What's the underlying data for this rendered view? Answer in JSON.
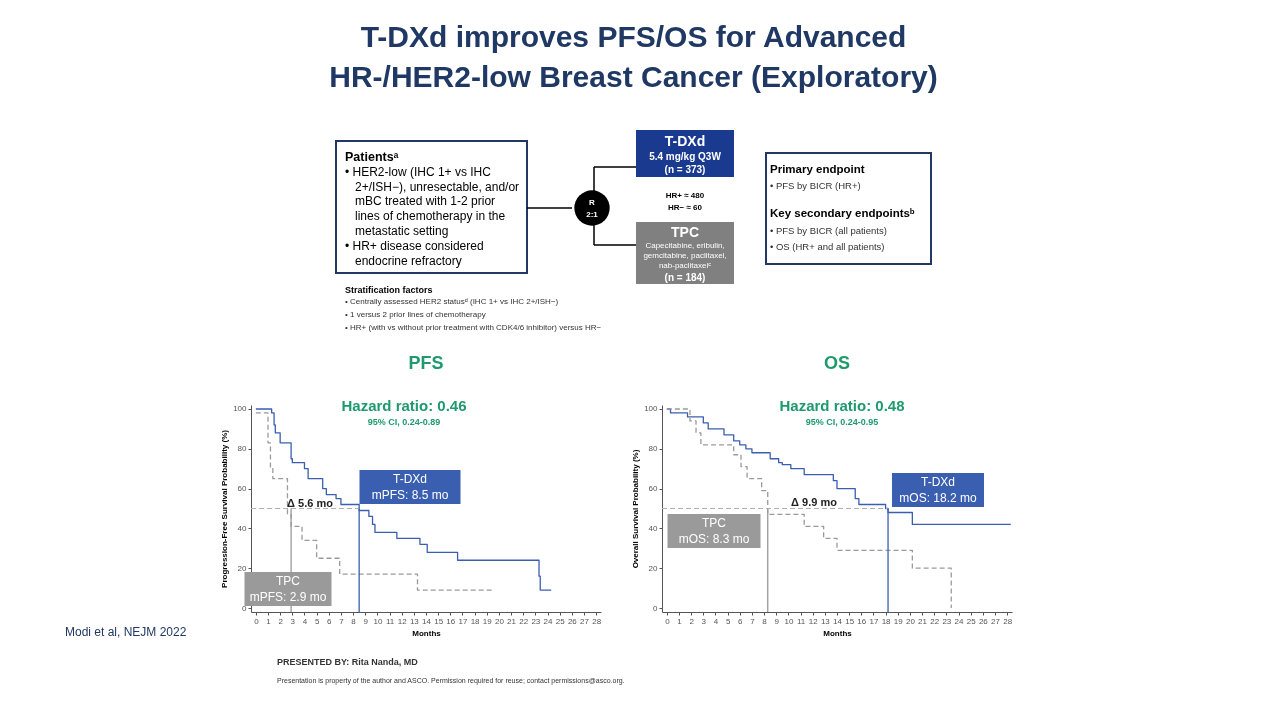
{
  "chart_data": [
    {
      "type": "other",
      "title": "T-DXd improves PFS/OS for Advanced\nHR-/HER2-low Breast Cancer (Exploratory)",
      "annotations": [
        "Patientsᵃ",
        "• HER2-low (IHC 1+ vs IHC",
        "2+/ISH−), unresectable, and/or",
        "mBC treated with 1-2 prior",
        "lines of chemotherapy in the",
        "metastatic setting",
        "• HR+ disease considered",
        "endocrine refractory",
        "Stratification factors",
        "• Centrally assessed HER2 statusᵈ (IHC 1+ vs IHC 2+/ISH−)",
        "• 1 versus 2 prior lines of chemotherapy",
        "• HR+ (with vs without prior treatment with CDK4/6 inhibitor) versus HR−",
        "R",
        "2:1",
        "T-DXd",
        "5.4 mg/kg Q3W",
        "(n = 373)",
        "HR+ ≈ 480",
        "HR− ≈ 60",
        "TPC",
        "Capecitabine, eribulin,",
        "gemcitabine, paclitaxel,",
        "nab-paclitaxelᶜ",
        "(n = 184)",
        "Primary endpoint",
        "• PFS by BICR (HR+)",
        "Key secondary endpointsᵇ",
        "• PFS by BICR (all patients)",
        "• OS (HR+ and all patients)"
      ]
    },
    {
      "type": "step",
      "title": "PFS",
      "xlabel": "Months",
      "ylabel": "Progression-Free Survival Probability (%)",
      "xlim": [
        -0.4,
        28.4
      ],
      "ylim": [
        -2,
        102
      ],
      "xticks": [
        0,
        1,
        2,
        3,
        4,
        5,
        6,
        7,
        8,
        9,
        10,
        11,
        12,
        13,
        14,
        15,
        16,
        17,
        18,
        19,
        20,
        21,
        22,
        23,
        24,
        25,
        26,
        27,
        28
      ],
      "yticks": [
        0,
        20,
        40,
        60,
        80,
        100
      ],
      "grid": false,
      "legend": false,
      "marker": "none",
      "series": [
        {
          "name": "T-DXd",
          "color": "#3a5fb0",
          "line_style": "solid",
          "x": [
            0,
            1.3,
            1.5,
            1.6,
            2.0,
            2.9,
            3.0,
            4.0,
            4.3,
            5.5,
            5.8,
            6.6,
            7.0,
            8.5,
            9.3,
            9.6,
            9.8,
            11.6,
            13.5,
            14.1,
            16.6,
            23.3,
            23.4,
            24.3
          ],
          "values": [
            100,
            98,
            92,
            88,
            83,
            75,
            73,
            70,
            65,
            60,
            57,
            55,
            52,
            49,
            46,
            42,
            38,
            35,
            32,
            28,
            24,
            16,
            9,
            9
          ]
        },
        {
          "name": "TPC",
          "color": "#9a9a9a",
          "line_style": "dashed",
          "x": [
            0,
            1.0,
            1.2,
            1.4,
            2.6,
            2.9,
            3.8,
            5.0,
            6.9,
            13.3,
            19.6
          ],
          "values": [
            98,
            83,
            70,
            65,
            47,
            41,
            34,
            25,
            17,
            9,
            9
          ]
        }
      ],
      "ref_lines": [
        {
          "axis": "y",
          "value": 50,
          "color": "#b0b0b0",
          "line_style": "dashed"
        },
        {
          "axis": "x",
          "value": 2.9,
          "color": "#9a9a9a",
          "line_style": "solid"
        },
        {
          "axis": "x",
          "value": 8.5,
          "color": "#3a5fb0",
          "line_style": "solid"
        }
      ],
      "annotations": [
        "Hazard ratio: 0.46",
        "95% CI, 0.24-0.89",
        "Δ 5.6 mo",
        "mPFS: 8.5 mo",
        "mPFS: 2.9 mo"
      ]
    },
    {
      "type": "step",
      "title": "OS",
      "xlabel": "Months",
      "ylabel": "Overall Survival Probability (%)",
      "xlim": [
        -0.4,
        28.4
      ],
      "ylim": [
        -2,
        102
      ],
      "xticks": [
        0,
        1,
        2,
        3,
        4,
        5,
        6,
        7,
        8,
        9,
        10,
        11,
        12,
        13,
        14,
        15,
        16,
        17,
        18,
        19,
        20,
        21,
        22,
        23,
        24,
        25,
        26,
        27,
        28
      ],
      "yticks": [
        0,
        20,
        40,
        60,
        80,
        100
      ],
      "grid": false,
      "legend": false,
      "marker": "none",
      "series": [
        {
          "name": "T-DXd",
          "color": "#3a5fb0",
          "line_style": "solid",
          "x": [
            0,
            0.3,
            1.7,
            3.0,
            3.4,
            4.7,
            5.5,
            6.0,
            6.5,
            7.0,
            8.5,
            9.2,
            9.5,
            10.2,
            11.3,
            13.7,
            14.0,
            15.5,
            15.8,
            18.0,
            18.2,
            20.2,
            28.3
          ],
          "values": [
            100,
            98,
            96,
            93,
            90,
            87,
            84,
            82,
            80,
            78,
            75,
            73,
            72,
            70,
            67,
            64,
            60,
            55,
            52,
            50,
            48,
            42,
            42
          ]
        },
        {
          "name": "TPC",
          "color": "#9a9a9a",
          "line_style": "dashed",
          "x": [
            0,
            1.9,
            2.4,
            2.8,
            5.5,
            6.1,
            6.6,
            7.8,
            8.3,
            11.3,
            12.9,
            14.0,
            20.2,
            23.4
          ],
          "values": [
            100,
            94,
            88,
            82,
            77,
            71,
            65,
            59,
            47,
            41,
            35,
            29,
            20,
            0
          ]
        }
      ],
      "ref_lines": [
        {
          "axis": "y",
          "value": 50,
          "color": "#b0b0b0",
          "line_style": "dashed"
        },
        {
          "axis": "x",
          "value": 8.3,
          "color": "#9a9a9a",
          "line_style": "solid"
        },
        {
          "axis": "x",
          "value": 18.2,
          "color": "#3a5fb0",
          "line_style": "solid"
        }
      ],
      "annotations": [
        "Hazard ratio: 0.48",
        "95% CI, 0.24-0.95",
        "Δ 9.9 mo",
        "mOS: 18.2 mo",
        "mOS: 8.3 mo"
      ]
    },
    {
      "type": "other",
      "annotations": [
        "Modi et al, NEJM 2022",
        "PRESENTED BY: Rita Nanda, MD",
        "Presentation is property of the author and ASCO. Permission required for reuse; contact permissions@asco.org."
      ]
    }
  ]
}
